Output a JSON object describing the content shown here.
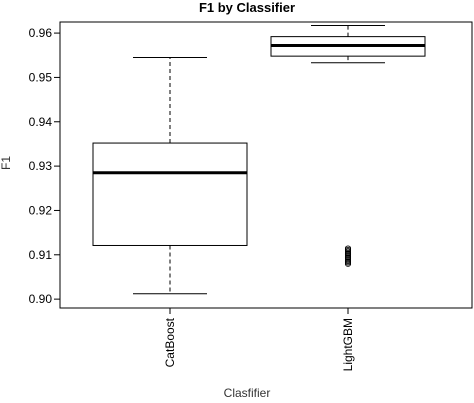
{
  "chart_data": {
    "type": "box",
    "title": "F1 by Classifier",
    "xlabel": "Clasfifier",
    "ylabel": "F1",
    "ylim": [
      0.898,
      0.9625
    ],
    "yticks": [
      "0.90",
      "0.91",
      "0.92",
      "0.93",
      "0.94",
      "0.95",
      "0.96"
    ],
    "categories": [
      "CatBoost",
      "LightGBM"
    ],
    "series": [
      {
        "category": "CatBoost",
        "whisker_low": 0.9012,
        "q1": 0.9121,
        "median": 0.9285,
        "q3": 0.9352,
        "whisker_high": 0.9545,
        "outliers": []
      },
      {
        "category": "LightGBM",
        "whisker_low": 0.9533,
        "q1": 0.9548,
        "median": 0.9572,
        "q3": 0.9592,
        "whisker_high": 0.9617,
        "outliers": [
          0.9079,
          0.9082,
          0.9085,
          0.9088,
          0.9091,
          0.9094,
          0.9097,
          0.91,
          0.9103,
          0.9106,
          0.9109,
          0.9112,
          0.9115
        ]
      }
    ],
    "grid": false
  }
}
